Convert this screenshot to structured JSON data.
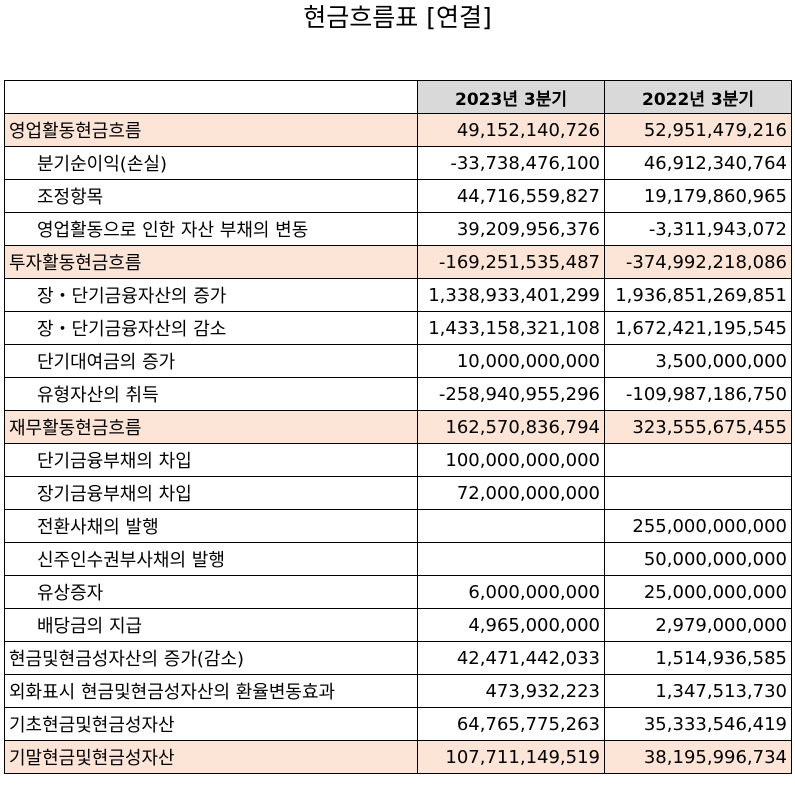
{
  "title": "현금흐름표 [연결]",
  "columns": [
    "",
    "2023년 3분기",
    "2022년 3분기"
  ],
  "colors": {
    "section_bg": "#fce4d6",
    "header_bg": "#d9d9d9"
  },
  "rows": [
    {
      "label": "영업활동현금흐름",
      "v1": "49,152,140,726",
      "v2": "52,951,479,216",
      "section": true,
      "indent": false
    },
    {
      "label": "분기순이익(손실)",
      "v1": "-33,738,476,100",
      "v2": "46,912,340,764",
      "section": false,
      "indent": true
    },
    {
      "label": "조정항목",
      "v1": "44,716,559,827",
      "v2": "19,179,860,965",
      "section": false,
      "indent": true
    },
    {
      "label": "영업활동으로 인한 자산 부채의 변동",
      "v1": "39,209,956,376",
      "v2": "-3,311,943,072",
      "section": false,
      "indent": true
    },
    {
      "label": "투자활동현금흐름",
      "v1": "-169,251,535,487",
      "v2": "-374,992,218,086",
      "section": true,
      "indent": false
    },
    {
      "label": "장・단기금융자산의 증가",
      "v1": "1,338,933,401,299",
      "v2": "1,936,851,269,851",
      "section": false,
      "indent": true
    },
    {
      "label": "장・단기금융자산의 감소",
      "v1": "1,433,158,321,108",
      "v2": "1,672,421,195,545",
      "section": false,
      "indent": true
    },
    {
      "label": "단기대여금의 증가",
      "v1": "10,000,000,000",
      "v2": "3,500,000,000",
      "section": false,
      "indent": true
    },
    {
      "label": "유형자산의 취득",
      "v1": "-258,940,955,296",
      "v2": "-109,987,186,750",
      "section": false,
      "indent": true
    },
    {
      "label": "재무활동현금흐름",
      "v1": "162,570,836,794",
      "v2": "323,555,675,455",
      "section": true,
      "indent": false
    },
    {
      "label": "단기금융부채의 차입",
      "v1": "100,000,000,000",
      "v2": "",
      "section": false,
      "indent": true
    },
    {
      "label": "장기금융부채의 차입",
      "v1": "72,000,000,000",
      "v2": "",
      "section": false,
      "indent": true
    },
    {
      "label": "전환사채의 발행",
      "v1": "",
      "v2": "255,000,000,000",
      "section": false,
      "indent": true
    },
    {
      "label": "신주인수권부사채의 발행",
      "v1": "",
      "v2": "50,000,000,000",
      "section": false,
      "indent": true
    },
    {
      "label": "유상증자",
      "v1": "6,000,000,000",
      "v2": "25,000,000,000",
      "section": false,
      "indent": true
    },
    {
      "label": "배당금의 지급",
      "v1": "4,965,000,000",
      "v2": "2,979,000,000",
      "section": false,
      "indent": true
    },
    {
      "label": "현금및현금성자산의 증가(감소)",
      "v1": "42,471,442,033",
      "v2": "1,514,936,585",
      "section": false,
      "indent": false
    },
    {
      "label": "외화표시 현금및현금성자산의 환율변동효과",
      "v1": "473,932,223",
      "v2": "1,347,513,730",
      "section": false,
      "indent": false
    },
    {
      "label": "기초현금및현금성자산",
      "v1": "64,765,775,263",
      "v2": "35,333,546,419",
      "section": false,
      "indent": false
    },
    {
      "label": "기말현금및현금성자산",
      "v1": "107,711,149,519",
      "v2": "38,195,996,734",
      "section": true,
      "indent": false
    }
  ]
}
